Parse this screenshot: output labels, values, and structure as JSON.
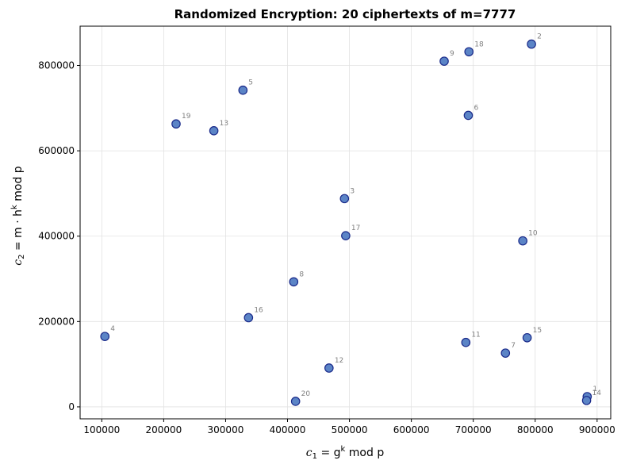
{
  "chart_data": {
    "type": "scatter",
    "title": "Randomized Encryption: 20 ciphertexts of m=7777",
    "xlabel": {
      "prefix": "c",
      "sub": "1",
      "mid": " = g",
      "sup": "k",
      "suffix": " mod p"
    },
    "ylabel": {
      "prefix": "c",
      "sub": "2",
      "mid": " = m · h",
      "sup": "k",
      "suffix": " mod p"
    },
    "xlim": [
      65000,
      922000
    ],
    "ylim": [
      -28000,
      892000
    ],
    "xticks": [
      100000,
      200000,
      300000,
      400000,
      500000,
      600000,
      700000,
      800000,
      900000
    ],
    "yticks": [
      0,
      200000,
      400000,
      600000,
      800000
    ],
    "xtick_labels": [
      "100000",
      "200000",
      "300000",
      "400000",
      "500000",
      "600000",
      "700000",
      "800000",
      "900000"
    ],
    "ytick_labels": [
      "0",
      "200000",
      "400000",
      "600000",
      "800000"
    ],
    "grid": true,
    "colors": {
      "point_fill": "#5b84c6",
      "point_edge": "#1a2a8a",
      "label": "#808080"
    },
    "points": [
      {
        "label": "1",
        "x": 884000,
        "y": 24000
      },
      {
        "label": "2",
        "x": 794000,
        "y": 850000
      },
      {
        "label": "3",
        "x": 492000,
        "y": 488000
      },
      {
        "label": "4",
        "x": 105000,
        "y": 165000
      },
      {
        "label": "5",
        "x": 328000,
        "y": 742000
      },
      {
        "label": "6",
        "x": 692000,
        "y": 683000
      },
      {
        "label": "7",
        "x": 752000,
        "y": 126000
      },
      {
        "label": "8",
        "x": 410000,
        "y": 293000
      },
      {
        "label": "9",
        "x": 653000,
        "y": 810000
      },
      {
        "label": "10",
        "x": 780000,
        "y": 389000
      },
      {
        "label": "11",
        "x": 688000,
        "y": 151000
      },
      {
        "label": "12",
        "x": 467000,
        "y": 91000
      },
      {
        "label": "13",
        "x": 281000,
        "y": 647000
      },
      {
        "label": "14",
        "x": 883000,
        "y": 15000
      },
      {
        "label": "15",
        "x": 787000,
        "y": 162000
      },
      {
        "label": "16",
        "x": 337000,
        "y": 209000
      },
      {
        "label": "17",
        "x": 494000,
        "y": 401000
      },
      {
        "label": "18",
        "x": 693000,
        "y": 832000
      },
      {
        "label": "19",
        "x": 220000,
        "y": 663000
      },
      {
        "label": "20",
        "x": 413000,
        "y": 13000
      }
    ]
  }
}
